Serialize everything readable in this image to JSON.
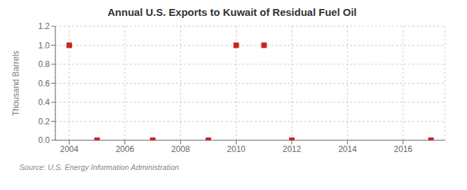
{
  "chart_data": {
    "type": "scatter",
    "title": "Annual U.S. Exports to Kuwait of Residual Fuel Oil",
    "ylabel": "Thousand Barrels",
    "annotations": [
      "Source: U.S. Energy Information Administration"
    ],
    "x": [
      2004,
      2005,
      2007,
      2009,
      2010,
      2011,
      2012,
      2017
    ],
    "values": [
      1.0,
      0.0,
      0.0,
      0.0,
      1.0,
      1.0,
      0.0,
      0.0
    ],
    "color": "#cc2222",
    "marker": "square",
    "xlim": [
      2003.5,
      2017.5
    ],
    "xticks": [
      2004,
      2006,
      2008,
      2010,
      2012,
      2014,
      2016
    ],
    "ylim": [
      0,
      1.2
    ],
    "yticks": [
      {
        "value": 0,
        "label": "0.0"
      },
      0.2,
      0.4,
      0.6,
      0.8,
      {
        "value": 1,
        "label": "1.0"
      },
      1.2
    ],
    "grid": true
  }
}
